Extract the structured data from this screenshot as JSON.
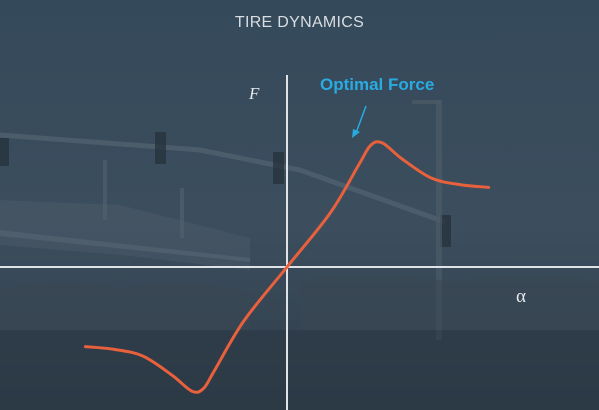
{
  "title": "TIRE DYNAMICS",
  "y_axis_label": "F",
  "x_axis_label": "α",
  "annotation": "Optimal Force",
  "colors": {
    "background": "#2d3d4c",
    "curve": "#e8603c",
    "annotation": "#29abe2",
    "axes": "#dfe3e7",
    "text": "#d9dee3"
  },
  "chart_data": {
    "type": "line",
    "title": "TIRE DYNAMICS",
    "xlabel": "α",
    "ylabel": "F",
    "xlim": [
      -1,
      1
    ],
    "ylim": [
      -1,
      1
    ],
    "series": [
      {
        "name": "F(α)",
        "x": [
          -0.7,
          -0.6,
          -0.5,
          -0.4,
          -0.33,
          -0.29,
          -0.25,
          -0.15,
          0.0,
          0.15,
          0.25,
          0.29,
          0.33,
          0.4,
          0.5,
          0.6,
          0.7
        ],
        "y": [
          -0.59,
          -0.61,
          -0.66,
          -0.8,
          -0.92,
          -0.9,
          -0.76,
          -0.4,
          0.0,
          0.4,
          0.76,
          0.9,
          0.92,
          0.8,
          0.66,
          0.61,
          0.59
        ]
      }
    ],
    "annotations": [
      {
        "text": "Optimal Force",
        "x": 0.3,
        "y": 0.92
      }
    ],
    "grid": false,
    "legend": "none"
  }
}
